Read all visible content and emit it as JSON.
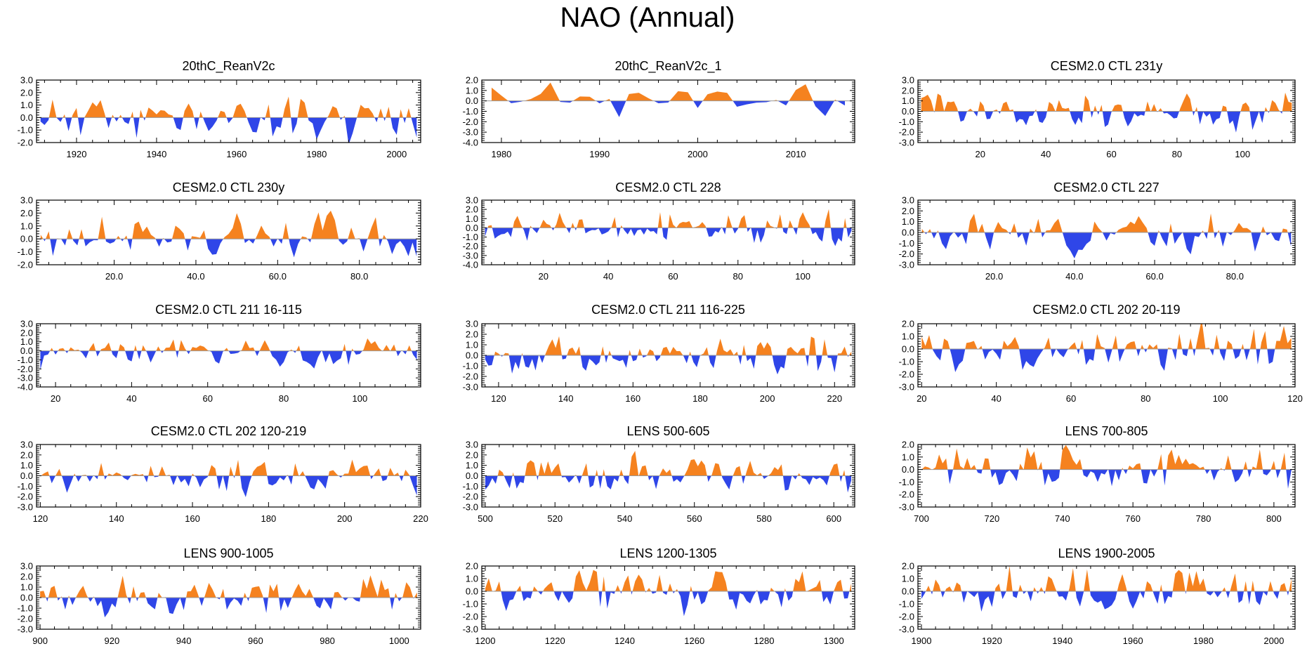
{
  "figure_title": "NAO (Annual)",
  "colors": {
    "positive": "#F5821F",
    "negative": "#2F46E8",
    "frame": "#000000",
    "zero_line": "#9A9A9A"
  },
  "chart_data": [
    {
      "type": "area",
      "title": "20thC_ReanV2c",
      "x_range": [
        1910,
        2006
      ],
      "x_ticks": [
        1920,
        1940,
        1960,
        1980,
        2000
      ],
      "x_tick_labels": [
        "1920",
        "1940",
        "1960",
        "1980",
        "2000"
      ],
      "y_range": [
        -2.0,
        3.0
      ],
      "y_ticks": [
        -2.0,
        -1.0,
        0.0,
        1.0,
        2.0,
        3.0
      ],
      "y_tick_labels": [
        "-2.0",
        "-1.0",
        "0.0",
        "1.0",
        "2.0",
        "3.0"
      ],
      "seed": 11,
      "amplitude": 1.35
    },
    {
      "type": "area",
      "title": "20thC_ReanV2c_1",
      "x_range": [
        1978,
        2016
      ],
      "x_ticks": [
        1980,
        1990,
        2000,
        2010
      ],
      "x_tick_labels": [
        "1980",
        "1990",
        "2000",
        "2010"
      ],
      "y_range": [
        -4.0,
        2.0
      ],
      "y_ticks": [
        -4.0,
        -3.0,
        -2.0,
        -1.0,
        0.0,
        1.0,
        2.0
      ],
      "y_tick_labels": [
        "-4.0",
        "-3.0",
        "-2.0",
        "-1.0",
        "0.0",
        "1.0",
        "2.0"
      ],
      "seed": 23,
      "amplitude": 1.1
    },
    {
      "type": "area",
      "title": "CESM2.0 CTL 231y",
      "x_range": [
        1,
        116
      ],
      "x_ticks": [
        20,
        40,
        60,
        80,
        100
      ],
      "x_tick_labels": [
        "20",
        "40",
        "60",
        "80",
        "100"
      ],
      "y_range": [
        -3.0,
        3.0
      ],
      "y_ticks": [
        -3.0,
        -2.0,
        -1.0,
        0.0,
        1.0,
        2.0,
        3.0
      ],
      "y_tick_labels": [
        "-3.0",
        "-2.0",
        "-1.0",
        "0.0",
        "1.0",
        "2.0",
        "3.0"
      ],
      "seed": 37,
      "amplitude": 1.3
    },
    {
      "type": "area",
      "title": "CESM2.0 CTL 230y",
      "x_range": [
        1,
        95
      ],
      "x_ticks": [
        20,
        40,
        60,
        80
      ],
      "x_tick_labels": [
        "20.0",
        "40.0",
        "60.0",
        "80.0"
      ],
      "y_range": [
        -2.0,
        3.0
      ],
      "y_ticks": [
        -2.0,
        -1.0,
        0.0,
        1.0,
        2.0,
        3.0
      ],
      "y_tick_labels": [
        "-2.0",
        "-1.0",
        "0.0",
        "1.0",
        "2.0",
        "3.0"
      ],
      "seed": 41,
      "amplitude": 1.35
    },
    {
      "type": "area",
      "title": "CESM2.0 CTL 228",
      "x_range": [
        1,
        116
      ],
      "x_ticks": [
        20,
        40,
        60,
        80,
        100
      ],
      "x_tick_labels": [
        "20",
        "40",
        "60",
        "80",
        "100"
      ],
      "y_range": [
        -4.0,
        3.0
      ],
      "y_ticks": [
        -4.0,
        -3.0,
        -2.0,
        -1.0,
        0.0,
        1.0,
        2.0,
        3.0
      ],
      "y_tick_labels": [
        "-4.0",
        "-3.0",
        "-2.0",
        "-1.0",
        "0.0",
        "1.0",
        "2.0",
        "3.0"
      ],
      "seed": 53,
      "amplitude": 1.25
    },
    {
      "type": "area",
      "title": "CESM2.0 CTL 227",
      "x_range": [
        1,
        95
      ],
      "x_ticks": [
        20,
        40,
        60,
        80
      ],
      "x_tick_labels": [
        "20.0",
        "40.0",
        "60.0",
        "80.0"
      ],
      "y_range": [
        -3.0,
        3.0
      ],
      "y_ticks": [
        -3.0,
        -2.0,
        -1.0,
        0.0,
        1.0,
        2.0,
        3.0
      ],
      "y_tick_labels": [
        "-3.0",
        "-2.0",
        "-1.0",
        "0.0",
        "1.0",
        "2.0",
        "3.0"
      ],
      "seed": 67,
      "amplitude": 1.3
    },
    {
      "type": "area",
      "title": "CESM2.0 CTL 211 16-115",
      "x_range": [
        15,
        116
      ],
      "x_ticks": [
        20,
        40,
        60,
        80,
        100
      ],
      "x_tick_labels": [
        "20",
        "40",
        "60",
        "80",
        "100"
      ],
      "y_range": [
        -4.0,
        3.0
      ],
      "y_ticks": [
        -4.0,
        -3.0,
        -2.0,
        -1.0,
        0.0,
        1.0,
        2.0,
        3.0
      ],
      "y_tick_labels": [
        "-4.0",
        "-3.0",
        "-2.0",
        "-1.0",
        "0.0",
        "1.0",
        "2.0",
        "3.0"
      ],
      "seed": 71,
      "amplitude": 1.25
    },
    {
      "type": "area",
      "title": "CESM2.0 CTL 211 116-225",
      "x_range": [
        115,
        226
      ],
      "x_ticks": [
        120,
        140,
        160,
        180,
        200,
        220
      ],
      "x_tick_labels": [
        "120",
        "140",
        "160",
        "180",
        "200",
        "220"
      ],
      "y_range": [
        -3.0,
        3.0
      ],
      "y_ticks": [
        -3.0,
        -2.0,
        -1.0,
        0.0,
        1.0,
        2.0,
        3.0
      ],
      "y_tick_labels": [
        "-3.0",
        "-2.0",
        "-1.0",
        "0.0",
        "1.0",
        "2.0",
        "3.0"
      ],
      "seed": 83,
      "amplitude": 1.35
    },
    {
      "type": "area",
      "title": "CESM2.0 CTL 202 20-119",
      "x_range": [
        19,
        120
      ],
      "x_ticks": [
        20,
        40,
        60,
        80,
        100,
        120
      ],
      "x_tick_labels": [
        "20",
        "40",
        "60",
        "80",
        "100",
        "120"
      ],
      "y_range": [
        -3.0,
        2.0
      ],
      "y_ticks": [
        -3.0,
        -2.0,
        -1.0,
        0.0,
        1.0,
        2.0
      ],
      "y_tick_labels": [
        "-3.0",
        "-2.0",
        "-1.0",
        "0.0",
        "1.0",
        "2.0"
      ],
      "seed": 97,
      "amplitude": 1.35
    },
    {
      "type": "area",
      "title": "CESM2.0 CTL 202 120-219",
      "x_range": [
        119,
        220
      ],
      "x_ticks": [
        120,
        140,
        160,
        180,
        200,
        220
      ],
      "x_tick_labels": [
        "120",
        "140",
        "160",
        "180",
        "200",
        "220"
      ],
      "y_range": [
        -3.0,
        3.0
      ],
      "y_ticks": [
        -3.0,
        -2.0,
        -1.0,
        0.0,
        1.0,
        2.0,
        3.0
      ],
      "y_tick_labels": [
        "-3.0",
        "-2.0",
        "-1.0",
        "0.0",
        "1.0",
        "2.0",
        "3.0"
      ],
      "seed": 101,
      "amplitude": 1.3
    },
    {
      "type": "area",
      "title": "LENS 500-605",
      "x_range": [
        499,
        606
      ],
      "x_ticks": [
        500,
        520,
        540,
        560,
        580,
        600
      ],
      "x_tick_labels": [
        "500",
        "520",
        "540",
        "560",
        "580",
        "600"
      ],
      "y_range": [
        -3.0,
        3.0
      ],
      "y_ticks": [
        -3.0,
        -2.0,
        -1.0,
        0.0,
        1.0,
        2.0,
        3.0
      ],
      "y_tick_labels": [
        "-3.0",
        "-2.0",
        "-1.0",
        "0.0",
        "1.0",
        "2.0",
        "3.0"
      ],
      "seed": 113,
      "amplitude": 1.3
    },
    {
      "type": "area",
      "title": "LENS 700-805",
      "x_range": [
        699,
        806
      ],
      "x_ticks": [
        700,
        720,
        740,
        760,
        780,
        800
      ],
      "x_tick_labels": [
        "700",
        "720",
        "740",
        "760",
        "780",
        "800"
      ],
      "y_range": [
        -3.0,
        2.0
      ],
      "y_ticks": [
        -3.0,
        -2.0,
        -1.0,
        0.0,
        1.0,
        2.0
      ],
      "y_tick_labels": [
        "-3.0",
        "-2.0",
        "-1.0",
        "0.0",
        "1.0",
        "2.0"
      ],
      "seed": 127,
      "amplitude": 1.3
    },
    {
      "type": "area",
      "title": "LENS 900-1005",
      "x_range": [
        899,
        1006
      ],
      "x_ticks": [
        900,
        920,
        940,
        960,
        980,
        1000
      ],
      "x_tick_labels": [
        "900",
        "920",
        "940",
        "960",
        "980",
        "1000"
      ],
      "y_range": [
        -3.0,
        3.0
      ],
      "y_ticks": [
        -3.0,
        -2.0,
        -1.0,
        0.0,
        1.0,
        2.0,
        3.0
      ],
      "y_tick_labels": [
        "-3.0",
        "-2.0",
        "-1.0",
        "0.0",
        "1.0",
        "2.0",
        "3.0"
      ],
      "seed": 131,
      "amplitude": 1.3
    },
    {
      "type": "area",
      "title": "LENS 1200-1305",
      "x_range": [
        1199,
        1306
      ],
      "x_ticks": [
        1200,
        1220,
        1240,
        1260,
        1280,
        1300
      ],
      "x_tick_labels": [
        "1200",
        "1220",
        "1240",
        "1260",
        "1280",
        "1300"
      ],
      "y_range": [
        -3.0,
        2.0
      ],
      "y_ticks": [
        -3.0,
        -2.0,
        -1.0,
        0.0,
        1.0,
        2.0
      ],
      "y_tick_labels": [
        "-3.0",
        "-2.0",
        "-1.0",
        "0.0",
        "1.0",
        "2.0"
      ],
      "seed": 139,
      "amplitude": 1.3
    },
    {
      "type": "area",
      "title": "LENS 1900-2005",
      "x_range": [
        1899,
        2006
      ],
      "x_ticks": [
        1900,
        1920,
        1940,
        1960,
        1980,
        2000
      ],
      "x_tick_labels": [
        "1900",
        "1920",
        "1940",
        "1960",
        "1980",
        "2000"
      ],
      "y_range": [
        -3.0,
        2.0
      ],
      "y_ticks": [
        -3.0,
        -2.0,
        -1.0,
        0.0,
        1.0,
        2.0
      ],
      "y_tick_labels": [
        "-3.0",
        "-2.0",
        "-1.0",
        "0.0",
        "1.0",
        "2.0"
      ],
      "seed": 149,
      "amplitude": 1.3
    }
  ]
}
